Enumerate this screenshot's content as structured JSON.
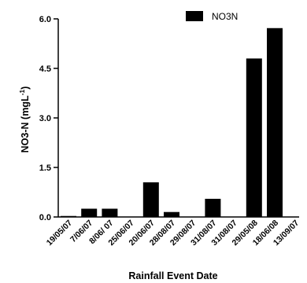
{
  "chart_data": {
    "type": "bar",
    "title": "",
    "xlabel": "Rainfall Event Date",
    "ylabel": "NO3-N (mgL",
    "ylabel_superscript": "-1",
    "ylabel_close": ")",
    "ylim": [
      0,
      6.0
    ],
    "yticks": [
      "0.0",
      "1.5",
      "3.0",
      "4.5",
      "6.0"
    ],
    "ytick_values": [
      0,
      1.5,
      3.0,
      4.5,
      6.0
    ],
    "grid": false,
    "legend_position": "top-right",
    "categories": [
      "19/05/07",
      "7/06/07",
      "8/06/ 07",
      "25/06/07",
      "20/06/07",
      "28/08/07",
      "29/08/07",
      "31/08/07",
      "31/08/07",
      "29/05/08",
      "18/06/08",
      "13/09/07"
    ],
    "series": [
      {
        "name": "NO3N",
        "color": "#000000",
        "values": [
          0.03,
          0.25,
          0.25,
          0.0,
          1.05,
          0.15,
          0.0,
          0.55,
          0.0,
          4.8,
          5.72,
          0.0
        ]
      }
    ]
  }
}
